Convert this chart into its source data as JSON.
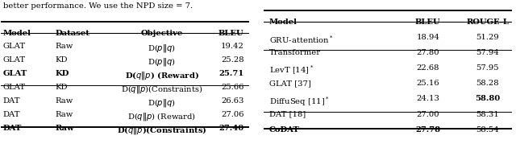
{
  "text_intro": "better performance. We use the NPD size = 7.",
  "table1_headers": [
    "Model",
    "Dataset",
    "Objective",
    "BLEU"
  ],
  "table1_rows": [
    [
      "GLAT",
      "Raw",
      "D($p \\| q$)",
      "19.42",
      false
    ],
    [
      "GLAT",
      "KD",
      "D($p \\| q$)",
      "25.28",
      false
    ],
    [
      "GLAT",
      "KD",
      "D($q \\| p$) (Reward)",
      "25.71",
      true
    ],
    [
      "GLAT",
      "KD",
      "D($q \\| p$)(Constraints)",
      "25.66",
      false
    ],
    [
      "DAT",
      "Raw",
      "D($p \\| q$)",
      "26.63",
      false
    ],
    [
      "DAT",
      "Raw",
      "D($q \\| p$) (Reward)",
      "27.06",
      false
    ],
    [
      "DAT",
      "Raw",
      "D($q \\| p$)(Constraints)",
      "27.40",
      true
    ]
  ],
  "table1_group_separator": 4,
  "table2_headers": [
    "Model",
    "BLEU",
    "ROUGE-L"
  ],
  "table2_rows": [
    [
      "GRU-attention$^*$",
      "18.94",
      "51.29",
      false,
      false
    ],
    [
      "Transformer",
      "27.80",
      "57.94",
      false,
      false
    ],
    [
      "LevT [14]$^*$",
      "22.68",
      "57.95",
      false,
      false
    ],
    [
      "GLAT [37]",
      "25.16",
      "58.28",
      false,
      false
    ],
    [
      "DiffuSeq [11]$^*$",
      "24.13",
      "58.80",
      false,
      true
    ],
    [
      "DAT [18]",
      "27.00",
      "58.31",
      false,
      false
    ],
    [
      "CoDAT",
      "27.78",
      "58.54",
      true,
      false
    ]
  ],
  "table2_group_separators": [
    2,
    6
  ],
  "background_color": "#ffffff",
  "font_size": 7.2
}
